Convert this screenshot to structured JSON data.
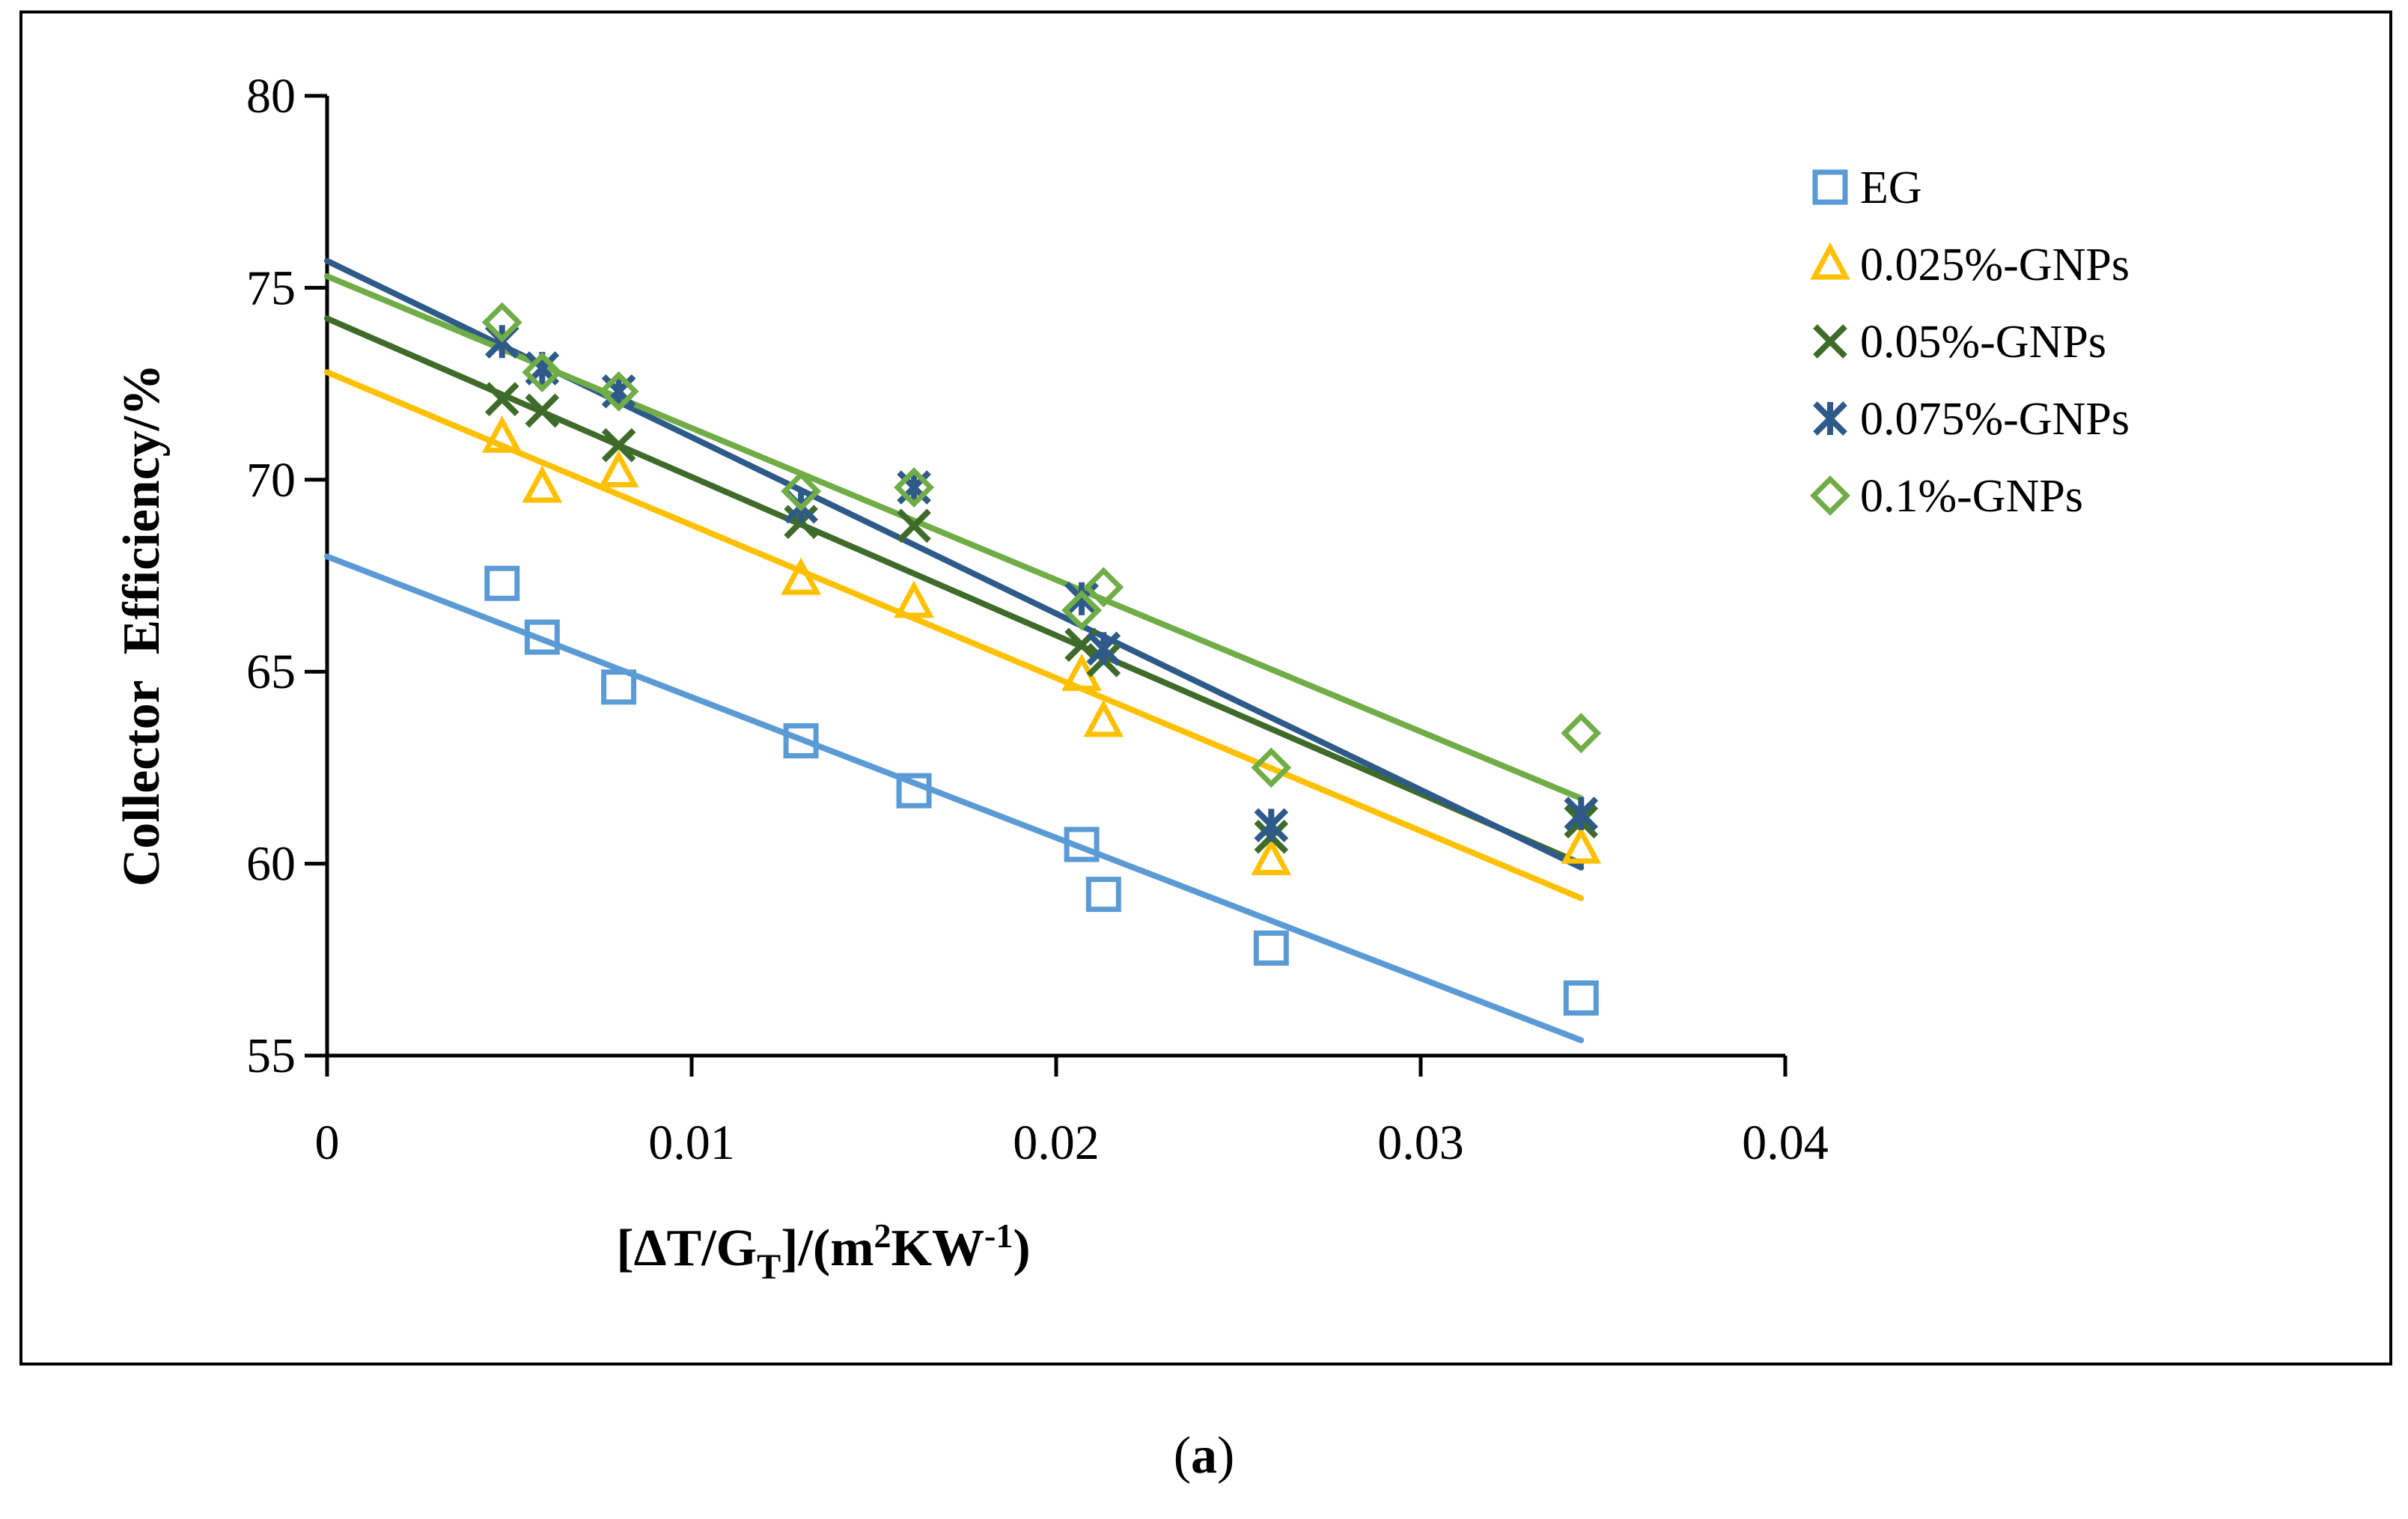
{
  "chart_data": {
    "type": "scatter",
    "title": "",
    "xlabel": {
      "main": "[ΔT/G",
      "sub": "T",
      "mid": "]/(m",
      "sup1": "2",
      "mid2": "KW",
      "sup2": "-1",
      "end": ")"
    },
    "ylabel": "Collector  Efficiency/%",
    "xlim": [
      0,
      0.04
    ],
    "ylim": [
      55,
      80
    ],
    "xticks": [
      "0",
      "0.01",
      "0.02",
      "0.03",
      "0.04"
    ],
    "yticks": [
      "55",
      "60",
      "65",
      "70",
      "75",
      "80"
    ],
    "xtick_values": [
      0,
      0.01,
      0.02,
      0.03,
      0.04
    ],
    "ytick_values": [
      55,
      60,
      65,
      70,
      75,
      80
    ],
    "grid": false,
    "legend_position": "right",
    "series": [
      {
        "name": "EG",
        "marker": "square",
        "color": "#5b9bd5",
        "x": [
          0.0048,
          0.0059,
          0.008,
          0.013,
          0.0161,
          0.0207,
          0.0213,
          0.0259,
          0.0344
        ],
        "y": [
          67.3,
          65.9,
          64.6,
          63.2,
          61.9,
          60.5,
          59.2,
          57.8,
          56.5
        ],
        "trendline": {
          "x": [
            0,
            0.0344
          ],
          "y": [
            68.0,
            55.4
          ]
        }
      },
      {
        "name": "0.025%-GNPs",
        "marker": "triangle",
        "color": "#ffc000",
        "x": [
          0.0048,
          0.0059,
          0.008,
          0.013,
          0.0161,
          0.0207,
          0.0213,
          0.0259,
          0.0344
        ],
        "y": [
          71.1,
          69.8,
          70.2,
          67.4,
          66.8,
          64.9,
          63.7,
          60.1,
          60.4
        ],
        "trendline": {
          "x": [
            0,
            0.0344
          ],
          "y": [
            72.8,
            59.1
          ]
        }
      },
      {
        "name": "0.05%-GNPs",
        "marker": "x",
        "color": "#3f6b2a",
        "x": [
          0.0048,
          0.0059,
          0.008,
          0.013,
          0.0161,
          0.0207,
          0.0213,
          0.0259,
          0.0344
        ],
        "y": [
          72.1,
          71.8,
          70.9,
          68.9,
          68.8,
          65.7,
          65.3,
          60.7,
          61.1
        ],
        "trendline": {
          "x": [
            0,
            0.0344
          ],
          "y": [
            74.2,
            60.0
          ]
        }
      },
      {
        "name": "0.075%-GNPs",
        "marker": "star",
        "color": "#2e5a8a",
        "x": [
          0.0048,
          0.0059,
          0.008,
          0.013,
          0.0161,
          0.0207,
          0.0213,
          0.0259,
          0.0344
        ],
        "y": [
          73.6,
          72.9,
          72.3,
          69.3,
          69.8,
          66.9,
          65.6,
          61.0,
          61.3
        ],
        "trendline": {
          "x": [
            0,
            0.0344
          ],
          "y": [
            75.7,
            59.9
          ]
        }
      },
      {
        "name": "0.1%-GNPs",
        "marker": "diamond",
        "color": "#70ad47",
        "x": [
          0.0048,
          0.0059,
          0.008,
          0.013,
          0.0161,
          0.0207,
          0.0213,
          0.0259,
          0.0344
        ],
        "y": [
          74.1,
          72.8,
          72.3,
          69.7,
          69.8,
          66.6,
          67.2,
          62.5,
          63.4
        ],
        "trendline": {
          "x": [
            0,
            0.0344
          ],
          "y": [
            75.3,
            61.7
          ]
        }
      }
    ]
  },
  "caption": {
    "open": "(",
    "letter": "a",
    "close": ")"
  }
}
